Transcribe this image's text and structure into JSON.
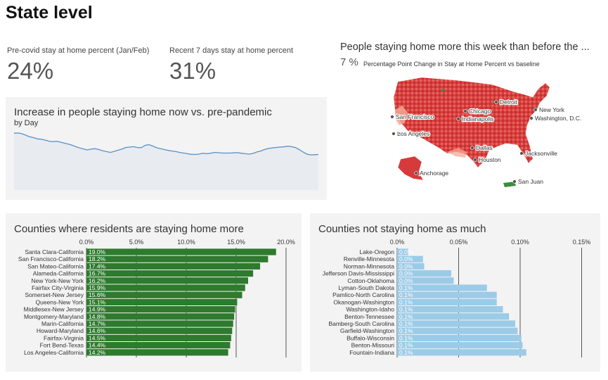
{
  "page_title": "State level",
  "kpis": {
    "precovid": {
      "label": "Pre-covid stay at home percent (Jan/Feb)",
      "value": "24%"
    },
    "recent": {
      "label": "Recent 7 days stay at home percent",
      "value": "31%"
    }
  },
  "map": {
    "title": "People staying home more this week than before the ...",
    "value": "7 %",
    "caption": "Percentage Point Change in Stay at Home Percent vs baseline",
    "cities": [
      "San Francisco",
      "Chicago",
      "Detroit",
      "New York",
      "Indianapolis",
      "Washington, D.C.",
      "Los Angeles",
      "Dallas",
      "Houston",
      "Jacksonville",
      "Anchorage",
      "San Juan"
    ],
    "colors": {
      "high": "#d63a3a",
      "mid": "#f08a78",
      "low": "#fbd3c0",
      "neg": "#3a8f3a"
    }
  },
  "colors": {
    "green_bar": "#2e7a2e",
    "blue_bar": "#9ccbe8",
    "line": "#5b8fc4",
    "area": "#e8ecf0"
  },
  "chart_data": [
    {
      "type": "area",
      "title": "Increase in people staying home now vs. pre-pandemic",
      "subtitle": "by Day",
      "x": [
        1,
        2,
        3,
        4,
        5,
        6,
        7,
        8,
        9,
        10,
        11,
        12,
        13,
        14,
        15,
        16,
        17,
        18,
        19,
        20,
        21,
        22,
        23,
        24,
        25,
        26,
        27,
        28,
        29,
        30,
        31,
        32,
        33,
        34,
        35,
        36,
        37,
        38,
        39,
        40,
        41,
        42,
        43,
        44,
        45,
        46,
        47,
        48,
        49,
        50,
        51,
        52,
        53,
        54,
        55,
        56,
        57,
        58,
        59,
        60,
        61,
        62,
        63,
        64,
        65,
        66,
        67,
        68,
        69,
        70,
        71,
        72,
        73,
        74,
        75,
        76,
        77,
        78,
        79,
        80
      ],
      "values": [
        27.5,
        27.6,
        27.3,
        26.6,
        25.8,
        25.4,
        24.8,
        24.6,
        24.2,
        23.7,
        23.4,
        23.6,
        23.2,
        22.7,
        22.3,
        21.7,
        21.0,
        20.4,
        19.9,
        19.4,
        19.8,
        20.0,
        19.6,
        19.0,
        18.6,
        18.2,
        18.7,
        19.3,
        19.8,
        20.6,
        20.8,
        21.0,
        20.6,
        20.5,
        21.6,
        22.0,
        21.3,
        20.5,
        20.0,
        19.6,
        19.2,
        18.9,
        18.6,
        18.2,
        17.9,
        17.6,
        17.3,
        17.2,
        17.4,
        17.8,
        17.6,
        17.8,
        18.2,
        18.1,
        17.9,
        17.9,
        17.9,
        18.0,
        18.1,
        17.8,
        17.6,
        17.4,
        17.7,
        18.4,
        18.9,
        19.6,
        20.1,
        20.4,
        20.6,
        20.8,
        20.9,
        21.2,
        21.0,
        20.6,
        19.6,
        18.4,
        17.4,
        17.0,
        17.1,
        17.2
      ],
      "ylim": [
        0,
        30
      ]
    },
    {
      "type": "bar",
      "orientation": "horizontal",
      "title": "Counties where residents are staying home more",
      "categories": [
        "Santa Clara-California",
        "San Francisco-California",
        "San Mateo-California",
        "Alameda-California",
        "New York-New York",
        "Fairfax City-Virginia",
        "Somerset-New Jersey",
        "Queens-New York",
        "Middlesex-New Jersey",
        "Montgomery-Maryland",
        "Marin-California",
        "Howard-Maryland",
        "Fairfax-Virginia",
        "Fort Bend-Texas",
        "Los Angeles-California"
      ],
      "values": [
        19.0,
        18.2,
        17.4,
        16.7,
        16.2,
        15.9,
        15.6,
        15.1,
        14.9,
        14.8,
        14.7,
        14.6,
        14.5,
        14.4,
        14.2
      ],
      "labels": [
        "19.0%",
        "18.2%",
        "17.4%",
        "16.7%",
        "16.2%",
        "15.9%",
        "15.6%",
        "15.1%",
        "14.9%",
        "14.8%",
        "14.7%",
        "14.6%",
        "14.5%",
        "14.4%",
        "14.2%"
      ],
      "ticks": [
        0,
        5,
        10,
        15,
        20
      ],
      "tick_labels": [
        "0.0%",
        "5.0%",
        "10.0%",
        "15.0%",
        "20.0%"
      ],
      "xlim": [
        0,
        21.2
      ]
    },
    {
      "type": "bar",
      "orientation": "horizontal",
      "title": "Counties not staying home as much",
      "categories": [
        "Lake-Oregon",
        "Renville-Minnesota",
        "Norman-Minnesota",
        "Jefferson Davis-Mississippi",
        "Cotton-Oklahoma",
        "Lyman-South Dakota",
        "Pamlico-North Carolina",
        "Okanogan-Washington",
        "Washington-Idaho",
        "Benton-Tennessee",
        "Bamberg-South Carolina",
        "Garfield-Washington",
        "Buffalo-Wisconsin",
        "Benton-Missouri",
        "Fountain-Indiana"
      ],
      "values": [
        0.009,
        0.021,
        0.022,
        0.044,
        0.046,
        0.073,
        0.081,
        0.081,
        0.086,
        0.091,
        0.096,
        0.098,
        0.101,
        0.102,
        0.105
      ],
      "labels": [
        "0.0%",
        "0.0%",
        "0.0%",
        "0.0%",
        "0.0%",
        "0.1%",
        "0.1%",
        "0.1%",
        "0.1%",
        "0.1%",
        "0.1%",
        "0.1%",
        "0.1%",
        "0.1%",
        "0.1%"
      ],
      "ticks": [
        0,
        0.05,
        0.1,
        0.15
      ],
      "tick_labels": [
        "0.0%",
        "0.05%",
        "0.10%",
        "0.15%"
      ],
      "xlim": [
        0,
        0.164
      ]
    }
  ]
}
